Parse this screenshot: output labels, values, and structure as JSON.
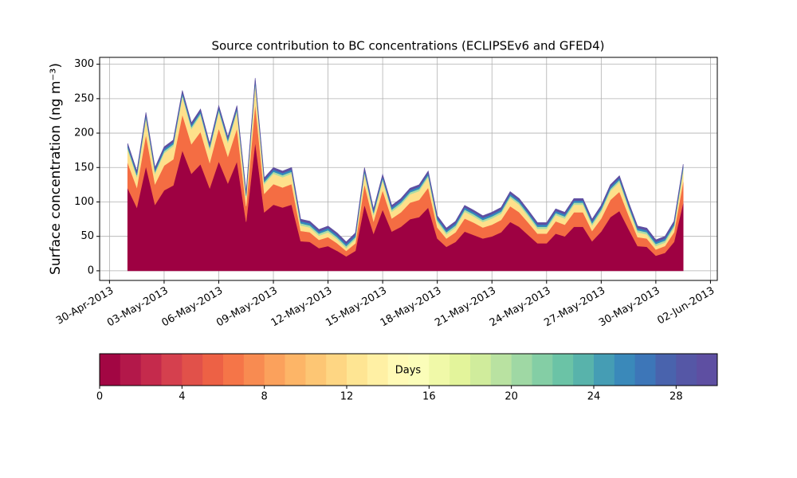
{
  "chart_data": {
    "type": "stacked_area",
    "title": "Source contribution to BC concentrations (ECLIPSEv6 and GFED4)",
    "ylabel": "Surface concentration (ng m⁻³)",
    "x": [
      "2013-05-01T00:00",
      "2013-05-01T12:00",
      "2013-05-02T00:00",
      "2013-05-02T12:00",
      "2013-05-03T00:00",
      "2013-05-03T12:00",
      "2013-05-04T00:00",
      "2013-05-04T12:00",
      "2013-05-05T00:00",
      "2013-05-05T12:00",
      "2013-05-06T00:00",
      "2013-05-06T12:00",
      "2013-05-07T00:00",
      "2013-05-07T12:00",
      "2013-05-08T00:00",
      "2013-05-08T12:00",
      "2013-05-09T00:00",
      "2013-05-09T12:00",
      "2013-05-10T00:00",
      "2013-05-10T12:00",
      "2013-05-11T00:00",
      "2013-05-11T12:00",
      "2013-05-12T00:00",
      "2013-05-12T12:00",
      "2013-05-13T00:00",
      "2013-05-13T12:00",
      "2013-05-14T00:00",
      "2013-05-14T12:00",
      "2013-05-15T00:00",
      "2013-05-15T12:00",
      "2013-05-16T00:00",
      "2013-05-16T12:00",
      "2013-05-17T00:00",
      "2013-05-17T12:00",
      "2013-05-18T00:00",
      "2013-05-18T12:00",
      "2013-05-19T00:00",
      "2013-05-19T12:00",
      "2013-05-20T00:00",
      "2013-05-20T12:00",
      "2013-05-21T00:00",
      "2013-05-21T12:00",
      "2013-05-22T00:00",
      "2013-05-22T12:00",
      "2013-05-23T00:00",
      "2013-05-23T12:00",
      "2013-05-24T00:00",
      "2013-05-24T12:00",
      "2013-05-25T00:00",
      "2013-05-25T12:00",
      "2013-05-26T00:00",
      "2013-05-26T12:00",
      "2013-05-27T00:00",
      "2013-05-27T12:00",
      "2013-05-28T00:00",
      "2013-05-28T12:00",
      "2013-05-29T00:00",
      "2013-05-29T12:00",
      "2013-05-30T00:00",
      "2013-05-30T12:00",
      "2013-05-31T00:00",
      "2013-05-31T12:00"
    ],
    "series": [
      {
        "color": "#9e0142",
        "values": [
          120,
          92,
          152,
          96,
          117,
          124,
          175,
          141,
          155,
          120,
          159,
          127,
          159,
          71,
          187,
          85,
          96,
          92,
          96,
          43,
          42,
          33,
          36,
          29,
          21,
          29,
          96,
          54,
          89,
          57,
          64,
          75,
          78,
          92,
          47,
          35,
          42,
          57,
          52,
          47,
          50,
          56,
          71,
          64,
          52,
          40,
          40,
          54,
          50,
          64,
          64,
          43,
          57,
          78,
          87,
          61,
          36,
          35,
          22,
          26,
          42,
          99
        ]
      },
      {
        "color": "#f46d43",
        "values": [
          37,
          29,
          46,
          30,
          36,
          38,
          52,
          43,
          47,
          37,
          48,
          39,
          48,
          23,
          56,
          27,
          30,
          29,
          30,
          15,
          14,
          12,
          13,
          11,
          8,
          11,
          30,
          18,
          28,
          19,
          21,
          24,
          25,
          29,
          16,
          12,
          14,
          19,
          18,
          16,
          17,
          18,
          23,
          21,
          18,
          14,
          14,
          18,
          17,
          21,
          21,
          15,
          19,
          25,
          28,
          20,
          13,
          12,
          9,
          10,
          14,
          31
        ]
      },
      {
        "color": "#fee08b",
        "values": [
          19,
          15,
          23,
          15,
          18,
          19,
          26,
          22,
          24,
          19,
          24,
          20,
          24,
          12,
          28,
          14,
          15,
          15,
          15,
          8,
          7,
          6,
          7,
          6,
          4,
          6,
          15,
          9,
          14,
          10,
          11,
          12,
          13,
          15,
          8,
          6,
          7,
          10,
          9,
          8,
          9,
          9,
          12,
          11,
          9,
          7,
          7,
          9,
          9,
          11,
          11,
          8,
          10,
          13,
          14,
          10,
          7,
          6,
          5,
          5,
          7,
          16
        ]
      },
      {
        "color": "#abdda4",
        "values": [
          3,
          3,
          3,
          3,
          3,
          3,
          3,
          3,
          3,
          3,
          3,
          3,
          3,
          3,
          3,
          3,
          3,
          3,
          3,
          3,
          3,
          3,
          3,
          3,
          3,
          3,
          3,
          3,
          3,
          3,
          3,
          3,
          3,
          3,
          3,
          3,
          3,
          3,
          3,
          3,
          3,
          3,
          3,
          3,
          3,
          3,
          3,
          3,
          3,
          3,
          3,
          3,
          3,
          3,
          3,
          3,
          3,
          3,
          3,
          3,
          3,
          3
        ]
      },
      {
        "color": "#3288bd",
        "values": [
          3,
          3,
          3,
          3,
          3,
          3,
          3,
          3,
          3,
          3,
          3,
          3,
          3,
          3,
          3,
          3,
          3,
          3,
          3,
          3,
          3,
          3,
          3,
          3,
          3,
          3,
          3,
          3,
          3,
          3,
          3,
          3,
          3,
          3,
          3,
          3,
          3,
          3,
          3,
          3,
          3,
          3,
          3,
          3,
          3,
          3,
          3,
          3,
          3,
          3,
          3,
          3,
          3,
          3,
          3,
          3,
          3,
          3,
          3,
          3,
          3,
          3
        ]
      },
      {
        "color": "#5e4fa2",
        "values": [
          3,
          3,
          3,
          3,
          3,
          3,
          3,
          3,
          3,
          3,
          3,
          3,
          3,
          3,
          3,
          3,
          3,
          3,
          3,
          3,
          3,
          3,
          3,
          3,
          3,
          3,
          3,
          3,
          3,
          3,
          3,
          3,
          3,
          3,
          3,
          3,
          3,
          3,
          3,
          3,
          3,
          3,
          3,
          3,
          3,
          3,
          3,
          3,
          3,
          3,
          3,
          3,
          3,
          3,
          3,
          3,
          3,
          3,
          3,
          3,
          3,
          3
        ]
      }
    ],
    "xlim": [
      "2013-04-29T11:00",
      "2013-06-02T09:00"
    ],
    "xticks": [
      {
        "value": "2013-04-30",
        "label": "30-Apr-2013"
      },
      {
        "value": "2013-05-03",
        "label": "03-May-2013"
      },
      {
        "value": "2013-05-06",
        "label": "06-May-2013"
      },
      {
        "value": "2013-05-09",
        "label": "09-May-2013"
      },
      {
        "value": "2013-05-12",
        "label": "12-May-2013"
      },
      {
        "value": "2013-05-15",
        "label": "15-May-2013"
      },
      {
        "value": "2013-05-18",
        "label": "18-May-2013"
      },
      {
        "value": "2013-05-21",
        "label": "21-May-2013"
      },
      {
        "value": "2013-05-24",
        "label": "24-May-2013"
      },
      {
        "value": "2013-05-27",
        "label": "27-May-2013"
      },
      {
        "value": "2013-05-30",
        "label": "30-May-2013"
      },
      {
        "value": "2013-06-02",
        "label": "02-Jun-2013"
      }
    ],
    "ylim": [
      -14,
      310
    ],
    "yticks": [
      0,
      50,
      100,
      150,
      200,
      250,
      300
    ],
    "grid": true,
    "colorbar": {
      "label": "Days",
      "lim": [
        0,
        30
      ],
      "ticks": [
        0,
        4,
        8,
        12,
        16,
        20,
        24,
        28
      ],
      "colors": [
        "#a20643",
        "#b3184a",
        "#c52a4c",
        "#d5404e",
        "#e1514a",
        "#ed6145",
        "#f57548",
        "#f88b51",
        "#fba15c",
        "#fdb567",
        "#fdc674",
        "#fed683",
        "#fee593",
        "#fff0a4",
        "#fffab6",
        "#fbfdb9",
        "#f0f9a8",
        "#e3f49b",
        "#d0ec9c",
        "#b9e2a1",
        "#9fd8a4",
        "#84cea5",
        "#6bc3a6",
        "#58b3ab",
        "#459db4",
        "#3a89ba",
        "#3d76b8",
        "#4963ad",
        "#5557a6",
        "#5e4fa2"
      ]
    }
  }
}
